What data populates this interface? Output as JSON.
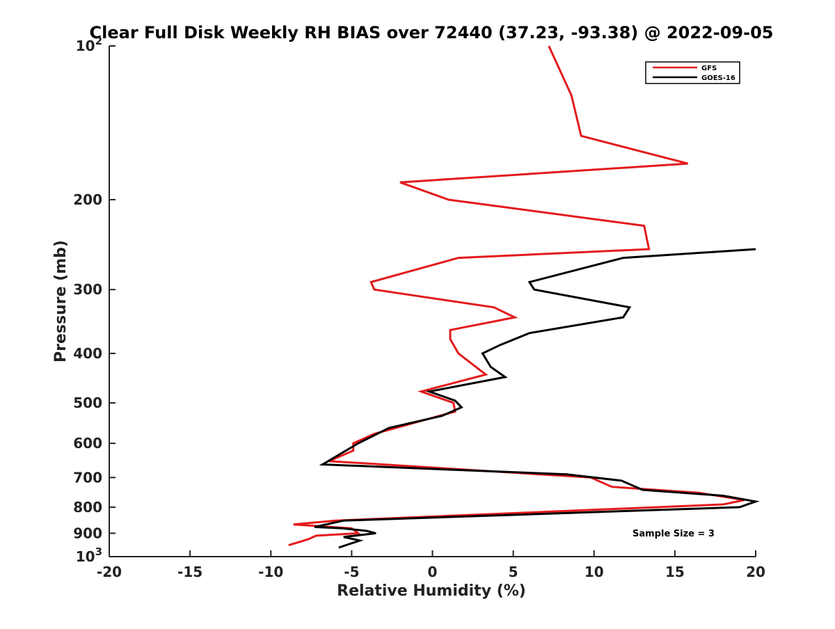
{
  "chart_data": {
    "type": "line",
    "title": "Clear Full Disk Weekly RH BIAS over 72440 (37.23, -93.38) @ 2022-09-05",
    "xlabel": "Relative Humidity (%)",
    "ylabel": "Pressure (mb)",
    "xlim": [
      -20,
      20
    ],
    "ylim": [
      100,
      1000
    ],
    "y_scale": "log",
    "y_reversed": true,
    "x_ticks": [
      "-20",
      "-15",
      "-10",
      "-5",
      "0",
      "5",
      "10",
      "15",
      "20"
    ],
    "y_ticks": [
      {
        "value": 100,
        "base": "10",
        "exp": "2"
      },
      {
        "value": 200,
        "label": "200"
      },
      {
        "value": 300,
        "label": "300"
      },
      {
        "value": 400,
        "label": "400"
      },
      {
        "value": 500,
        "label": "500"
      },
      {
        "value": 600,
        "label": "600"
      },
      {
        "value": 700,
        "label": "700"
      },
      {
        "value": 800,
        "label": "800"
      },
      {
        "value": 900,
        "label": "900"
      },
      {
        "value": 1000,
        "base": "10",
        "exp": "3"
      }
    ],
    "grid": false,
    "legend_position": "top-right",
    "annotation": "Sample Size = 3",
    "series": [
      {
        "name": "GFS",
        "color": "#e41a1c",
        "points": [
          {
            "x": 7.2,
            "p": 100
          },
          {
            "x": 8.6,
            "p": 125
          },
          {
            "x": 9.2,
            "p": 150
          },
          {
            "x": 15.8,
            "p": 170
          },
          {
            "x": -2.0,
            "p": 185
          },
          {
            "x": 1.0,
            "p": 200
          },
          {
            "x": 13.1,
            "p": 225
          },
          {
            "x": 13.4,
            "p": 250
          },
          {
            "x": 1.6,
            "p": 260
          },
          {
            "x": -3.8,
            "p": 290
          },
          {
            "x": -3.6,
            "p": 300
          },
          {
            "x": 3.8,
            "p": 325
          },
          {
            "x": 5.1,
            "p": 340
          },
          {
            "x": 1.1,
            "p": 360
          },
          {
            "x": 1.1,
            "p": 375
          },
          {
            "x": 1.6,
            "p": 400
          },
          {
            "x": 3.3,
            "p": 440
          },
          {
            "x": -0.7,
            "p": 475
          },
          {
            "x": 1.3,
            "p": 500
          },
          {
            "x": 1.4,
            "p": 520
          },
          {
            "x": -3.6,
            "p": 575
          },
          {
            "x": -4.9,
            "p": 600
          },
          {
            "x": -4.9,
            "p": 620
          },
          {
            "x": -6.4,
            "p": 650
          },
          {
            "x": 9.8,
            "p": 700
          },
          {
            "x": 11.1,
            "p": 730
          },
          {
            "x": 16.5,
            "p": 750
          },
          {
            "x": 19.3,
            "p": 775
          },
          {
            "x": 18.0,
            "p": 790
          },
          {
            "x": -6.0,
            "p": 850
          },
          {
            "x": -8.6,
            "p": 865
          },
          {
            "x": -5.0,
            "p": 880
          },
          {
            "x": -4.6,
            "p": 900
          },
          {
            "x": -7.2,
            "p": 910
          },
          {
            "x": -7.7,
            "p": 925
          },
          {
            "x": -8.9,
            "p": 950
          }
        ]
      },
      {
        "name": "GOES-16",
        "color": "#000000",
        "points": [
          {
            "x": 20.0,
            "p": 250
          },
          {
            "x": 11.8,
            "p": 260
          },
          {
            "x": 6.0,
            "p": 290
          },
          {
            "x": 6.3,
            "p": 300
          },
          {
            "x": 12.2,
            "p": 325
          },
          {
            "x": 11.8,
            "p": 340
          },
          {
            "x": 6.0,
            "p": 365
          },
          {
            "x": 4.2,
            "p": 385
          },
          {
            "x": 3.1,
            "p": 400
          },
          {
            "x": 3.6,
            "p": 425
          },
          {
            "x": 4.5,
            "p": 445
          },
          {
            "x": -0.2,
            "p": 475
          },
          {
            "x": 1.4,
            "p": 495
          },
          {
            "x": 1.8,
            "p": 510
          },
          {
            "x": 0.6,
            "p": 530
          },
          {
            "x": -2.7,
            "p": 560
          },
          {
            "x": -4.6,
            "p": 600
          },
          {
            "x": -6.8,
            "p": 660
          },
          {
            "x": 8.3,
            "p": 690
          },
          {
            "x": 11.7,
            "p": 710
          },
          {
            "x": 13.0,
            "p": 740
          },
          {
            "x": 18.0,
            "p": 760
          },
          {
            "x": 20.0,
            "p": 780
          },
          {
            "x": 19.0,
            "p": 800
          },
          {
            "x": -5.5,
            "p": 850
          },
          {
            "x": -7.3,
            "p": 875
          },
          {
            "x": -5.6,
            "p": 880
          },
          {
            "x": -4.1,
            "p": 890
          },
          {
            "x": -3.5,
            "p": 900
          },
          {
            "x": -5.5,
            "p": 915
          },
          {
            "x": -4.5,
            "p": 930
          },
          {
            "x": -5.8,
            "p": 960
          }
        ]
      }
    ]
  }
}
